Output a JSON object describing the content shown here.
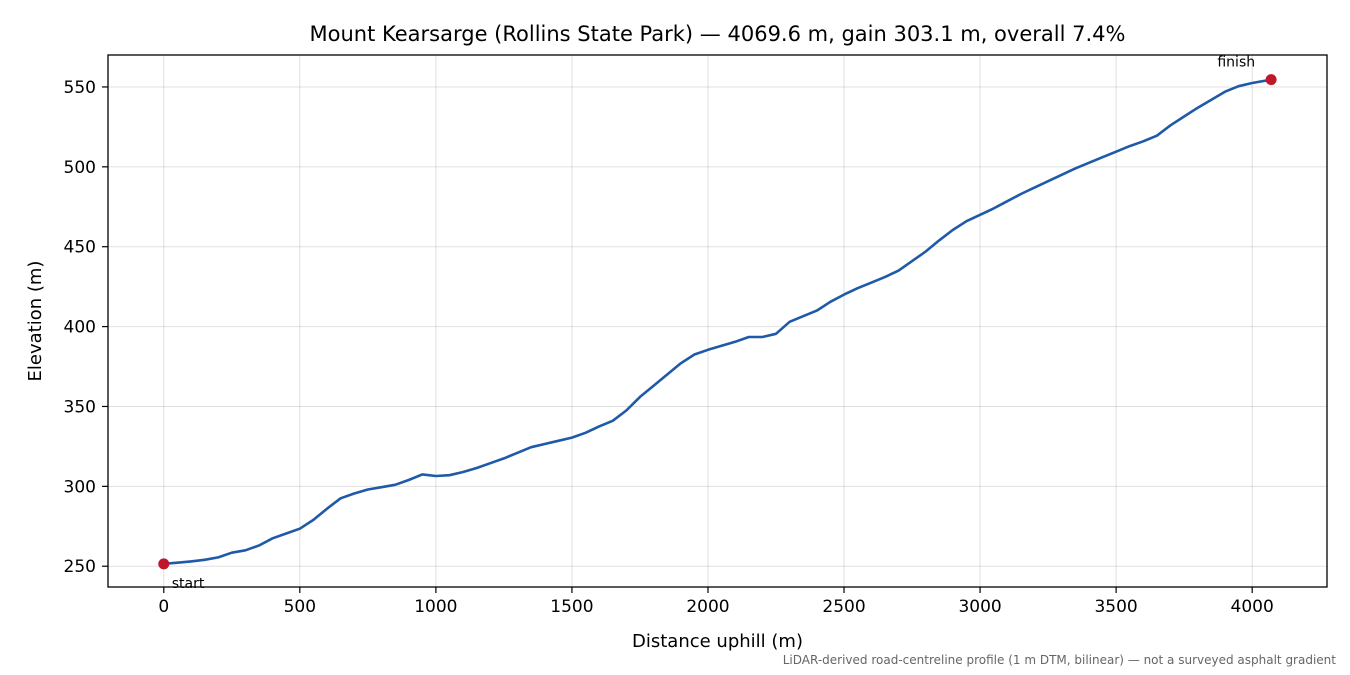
{
  "chart_data": {
    "type": "line",
    "title": "Mount Kearsarge (Rollins State Park) — 4069.6 m, gain 303.1 m, overall 7.4%",
    "xlabel": "Distance uphill (m)",
    "ylabel": "Elevation (m)",
    "xlim": [
      -205,
      4275
    ],
    "ylim": [
      237,
      570
    ],
    "xticks": [
      0,
      500,
      1000,
      1500,
      2000,
      2500,
      3000,
      3500,
      4000
    ],
    "yticks": [
      250,
      300,
      350,
      400,
      450,
      500,
      550
    ],
    "grid": true,
    "series": [
      {
        "color": "#1f5aa8",
        "points": [
          [
            0,
            251.5
          ],
          [
            50,
            252.2
          ],
          [
            100,
            253
          ],
          [
            150,
            254
          ],
          [
            200,
            255.5
          ],
          [
            250,
            258.5
          ],
          [
            300,
            260
          ],
          [
            350,
            263
          ],
          [
            400,
            267.5
          ],
          [
            450,
            270.5
          ],
          [
            500,
            273.5
          ],
          [
            550,
            279
          ],
          [
            600,
            286
          ],
          [
            650,
            292.5
          ],
          [
            700,
            295.5
          ],
          [
            750,
            298
          ],
          [
            800,
            299.5
          ],
          [
            850,
            301
          ],
          [
            900,
            304
          ],
          [
            950,
            307.5
          ],
          [
            1000,
            306.5
          ],
          [
            1050,
            307
          ],
          [
            1100,
            309
          ],
          [
            1150,
            311.5
          ],
          [
            1200,
            314.5
          ],
          [
            1250,
            317.5
          ],
          [
            1300,
            321
          ],
          [
            1350,
            324.5
          ],
          [
            1400,
            326.5
          ],
          [
            1450,
            328.5
          ],
          [
            1500,
            330.5
          ],
          [
            1550,
            333.5
          ],
          [
            1600,
            337.5
          ],
          [
            1650,
            341
          ],
          [
            1700,
            347.5
          ],
          [
            1750,
            356
          ],
          [
            1800,
            363
          ],
          [
            1850,
            370
          ],
          [
            1900,
            377
          ],
          [
            1950,
            382.5
          ],
          [
            2000,
            385.5
          ],
          [
            2050,
            388
          ],
          [
            2100,
            390.5
          ],
          [
            2150,
            393.5
          ],
          [
            2200,
            393.5
          ],
          [
            2250,
            395.5
          ],
          [
            2300,
            403
          ],
          [
            2350,
            406.5
          ],
          [
            2400,
            410
          ],
          [
            2450,
            415.5
          ],
          [
            2500,
            420
          ],
          [
            2550,
            424
          ],
          [
            2600,
            427.5
          ],
          [
            2650,
            431
          ],
          [
            2700,
            435
          ],
          [
            2750,
            441
          ],
          [
            2800,
            447
          ],
          [
            2850,
            454
          ],
          [
            2900,
            460.5
          ],
          [
            2950,
            466
          ],
          [
            3000,
            470
          ],
          [
            3050,
            474
          ],
          [
            3100,
            478.5
          ],
          [
            3150,
            483
          ],
          [
            3200,
            487
          ],
          [
            3250,
            491
          ],
          [
            3300,
            495
          ],
          [
            3350,
            499
          ],
          [
            3400,
            502.5
          ],
          [
            3450,
            506
          ],
          [
            3500,
            509.5
          ],
          [
            3550,
            513
          ],
          [
            3600,
            516
          ],
          [
            3650,
            519.5
          ],
          [
            3700,
            526
          ],
          [
            3750,
            531.5
          ],
          [
            3800,
            537
          ],
          [
            3850,
            542
          ],
          [
            3900,
            547
          ],
          [
            3950,
            550.5
          ],
          [
            4000,
            552.5
          ],
          [
            4069.6,
            554.6
          ]
        ]
      }
    ],
    "markers": [
      {
        "x": 0,
        "y": 251.5,
        "label": "start",
        "color": "#c0182a"
      },
      {
        "x": 4069.6,
        "y": 554.6,
        "label": "finish",
        "color": "#c0182a"
      }
    ],
    "footnote": "LiDAR-derived road-centreline profile (1 m DTM, bilinear) — not a surveyed asphalt gradient"
  }
}
